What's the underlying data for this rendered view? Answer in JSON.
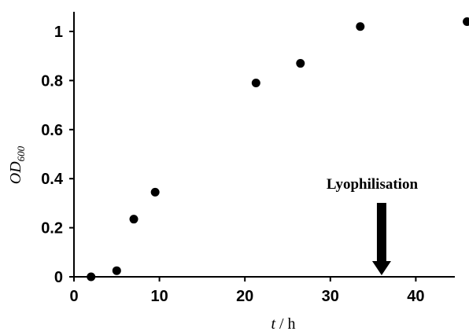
{
  "chart_data": {
    "type": "scatter",
    "title": "",
    "xlabel": {
      "italic": "t",
      "rest": " / h"
    },
    "ylabel": {
      "italic": "OD",
      "subscript": "600"
    },
    "xlim": [
      0,
      47
    ],
    "ylim": [
      0,
      1.08
    ],
    "xticks": [
      "0",
      "10",
      "20",
      "30",
      "40"
    ],
    "yticks": [
      "0",
      "0.2",
      "0.4",
      "0.6",
      "0.8",
      "1"
    ],
    "grid": false,
    "legend": null,
    "series": [
      {
        "x": [
          2,
          5,
          7,
          9.5,
          21.3,
          26.5,
          33.5,
          46
        ],
        "y": [
          0.0,
          0.025,
          0.235,
          0.345,
          0.79,
          0.87,
          1.02,
          1.04
        ]
      }
    ],
    "annotation": {
      "text": "Lyophilisation",
      "x": 36
    },
    "colors": {
      "marker": "#000000",
      "axis": "#000000"
    }
  }
}
